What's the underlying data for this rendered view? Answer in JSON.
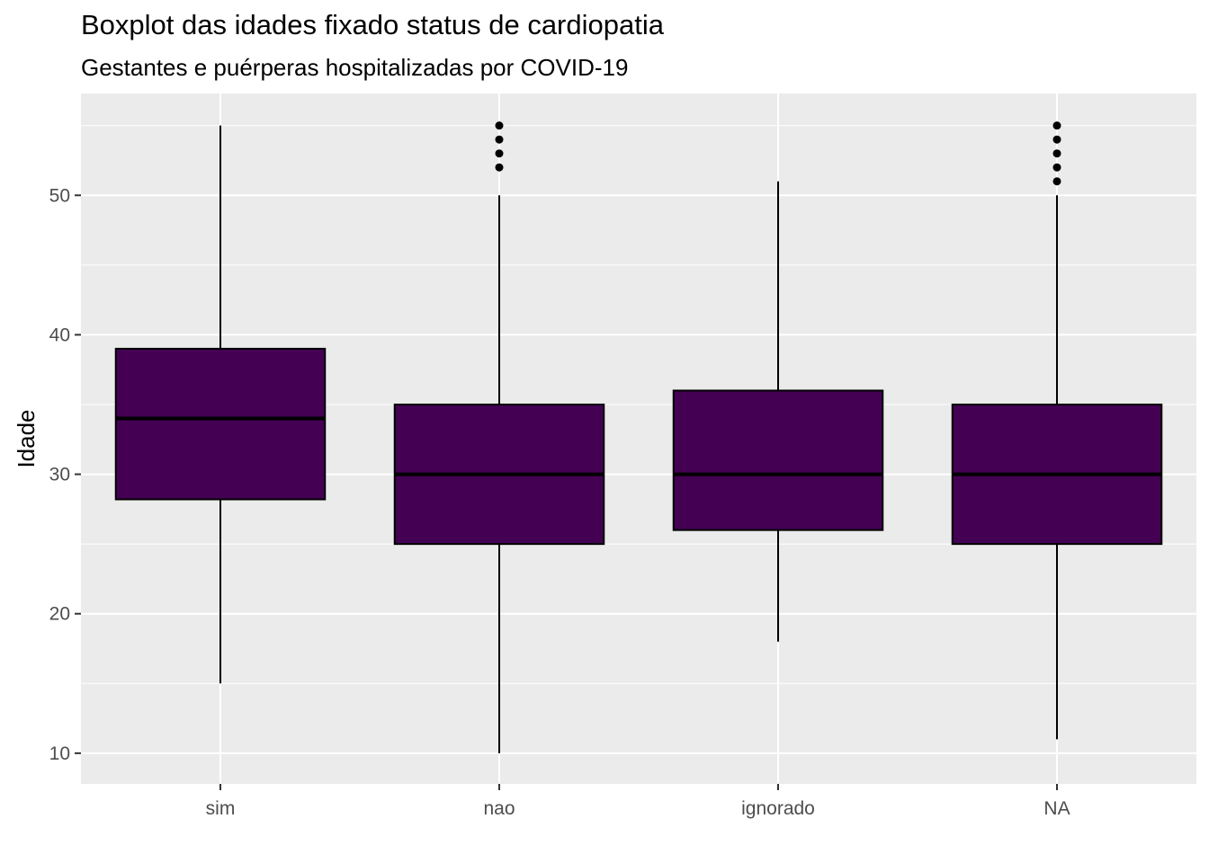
{
  "title": "Boxplot das idades fixado status de cardiopatia",
  "subtitle": "Gestantes e puérperas hospitalizadas por COVID-19",
  "chart_data": {
    "type": "boxplot",
    "title": "Boxplot das idades fixado status de cardiopatia",
    "subtitle": "Gestantes e puérperas hospitalizadas por COVID-19",
    "xlabel": "",
    "ylabel": "Idade",
    "ylim": [
      7.8,
      57.3
    ],
    "yticks": [
      10,
      20,
      30,
      40,
      50
    ],
    "grid": true,
    "legend": "none",
    "colors": {
      "panel": "#EBEBEB",
      "grid": "#FFFFFF",
      "box_fill": "#440154",
      "box_stroke": "#000000",
      "outlier": "#000000",
      "tick_label": "#4D4D4D"
    },
    "categories": [
      "sim",
      "nao",
      "ignorado",
      "NA"
    ],
    "boxes": [
      {
        "category": "sim",
        "whisker_low": 15,
        "q1": 28.2,
        "median": 34,
        "q3": 39,
        "whisker_high": 55,
        "outliers": []
      },
      {
        "category": "nao",
        "whisker_low": 10,
        "q1": 25,
        "median": 30,
        "q3": 35,
        "whisker_high": 50,
        "outliers": [
          52,
          53,
          54,
          55
        ]
      },
      {
        "category": "ignorado",
        "whisker_low": 18,
        "q1": 26,
        "median": 30,
        "q3": 36,
        "whisker_high": 51,
        "outliers": []
      },
      {
        "category": "NA",
        "whisker_low": 11,
        "q1": 25,
        "median": 30,
        "q3": 35,
        "whisker_high": 50,
        "outliers": [
          51,
          52,
          53,
          54,
          55
        ]
      }
    ]
  }
}
